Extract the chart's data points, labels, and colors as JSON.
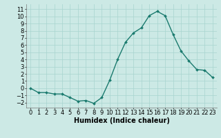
{
  "title": "",
  "xlabel": "Humidex (Indice chaleur)",
  "ylabel": "",
  "x_values": [
    0,
    1,
    2,
    3,
    4,
    5,
    6,
    7,
    8,
    9,
    10,
    11,
    12,
    13,
    14,
    15,
    16,
    17,
    18,
    19,
    20,
    21,
    22,
    23
  ],
  "y_values": [
    0,
    -0.6,
    -0.6,
    -0.8,
    -0.8,
    -1.3,
    -1.8,
    -1.7,
    -2.1,
    -1.3,
    1.1,
    4.0,
    6.4,
    7.7,
    8.4,
    10.1,
    10.7,
    10.1,
    7.5,
    5.2,
    3.8,
    2.6,
    2.5,
    1.5
  ],
  "line_color": "#1a7a6e",
  "marker": "D",
  "marker_size": 2.0,
  "bg_color": "#cce9e5",
  "grid_color": "#a8d4cf",
  "xlim": [
    -0.5,
    23.5
  ],
  "ylim": [
    -2.7,
    11.7
  ],
  "yticks": [
    -2,
    -1,
    0,
    1,
    2,
    3,
    4,
    5,
    6,
    7,
    8,
    9,
    10,
    11
  ],
  "xticks": [
    0,
    1,
    2,
    3,
    4,
    5,
    6,
    7,
    8,
    9,
    10,
    11,
    12,
    13,
    14,
    15,
    16,
    17,
    18,
    19,
    20,
    21,
    22,
    23
  ],
  "xlabel_fontsize": 7,
  "tick_fontsize": 6,
  "line_width": 1.0
}
